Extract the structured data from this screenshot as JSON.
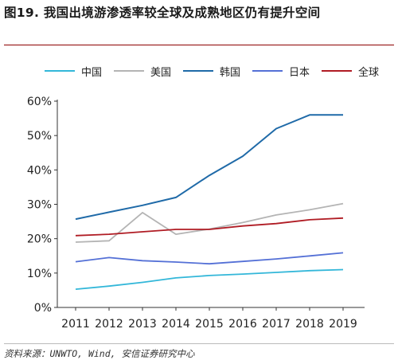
{
  "title": "图19. 我国出境游渗透率较全球及成熟地区仍有提升空间",
  "source": "资料来源：UNWTO, Wind, 安信证券研究中心",
  "chart_data": {
    "type": "line",
    "title": "图19. 我国出境游渗透率较全球及成熟地区仍有提升空间",
    "xlabel": "",
    "ylabel": "",
    "x": [
      "2011",
      "2012",
      "2013",
      "2014",
      "2015",
      "2016",
      "2017",
      "2018",
      "2019"
    ],
    "ylim": [
      0,
      60
    ],
    "yticks": [
      0,
      10,
      20,
      30,
      40,
      50,
      60
    ],
    "ytick_labels": [
      "0%",
      "10%",
      "20%",
      "30%",
      "40%",
      "50%",
      "60%"
    ],
    "grid": false,
    "legend_position": "top",
    "series": [
      {
        "name": "中国",
        "color": "#33b7d9",
        "values": [
          5.3,
          6.2,
          7.3,
          8.6,
          9.3,
          9.7,
          10.2,
          10.7,
          11.0
        ]
      },
      {
        "name": "美国",
        "color": "#b4b4b4",
        "values": [
          19.0,
          19.4,
          27.6,
          21.3,
          22.8,
          24.7,
          26.9,
          28.4,
          30.2
        ]
      },
      {
        "name": "韩国",
        "color": "#1f6aa8",
        "values": [
          25.7,
          27.7,
          29.7,
          32.0,
          38.4,
          44.0,
          52.0,
          56.0,
          56.0
        ]
      },
      {
        "name": "日本",
        "color": "#5470d6",
        "values": [
          13.3,
          14.5,
          13.6,
          13.2,
          12.7,
          13.4,
          14.1,
          15.0,
          15.9
        ]
      },
      {
        "name": "全球",
        "color": "#b01c24",
        "values": [
          20.9,
          21.3,
          22.0,
          22.7,
          22.7,
          23.7,
          24.4,
          25.5,
          26.0
        ]
      }
    ]
  }
}
